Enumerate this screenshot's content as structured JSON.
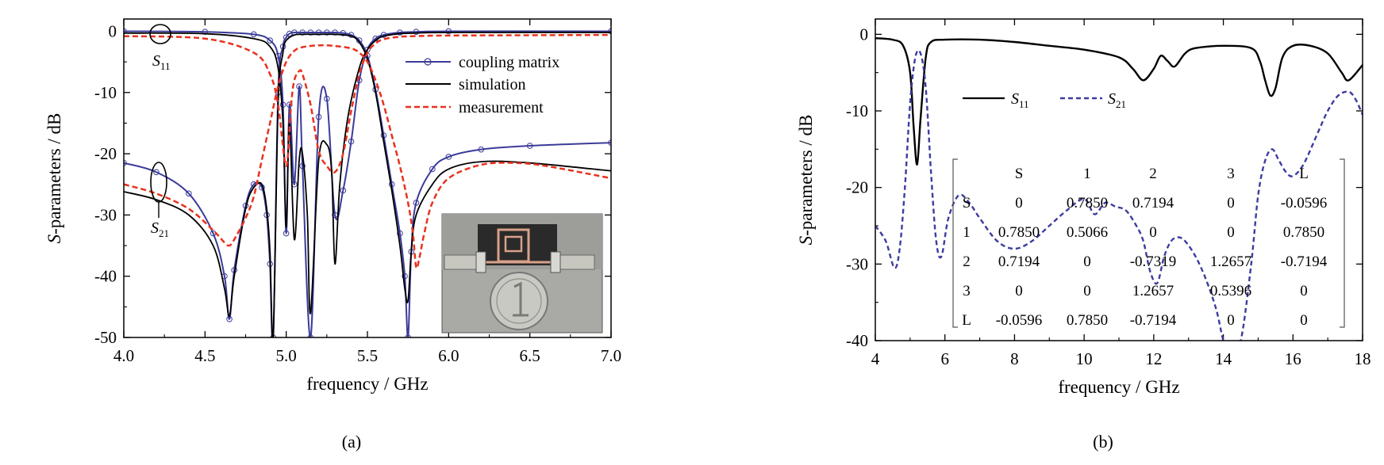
{
  "chart_data": [
    {
      "id": "a",
      "type": "line",
      "panel_label": "(a)",
      "xlabel": "frequency / GHz",
      "ylabel_italic": "S",
      "ylabel_rest": "-parameters / dB",
      "xlim": [
        4.0,
        7.0
      ],
      "ylim": [
        -50,
        2
      ],
      "xticks": [
        4.0,
        4.5,
        5.0,
        5.5,
        6.0,
        6.5,
        7.0
      ],
      "xtick_labels": [
        "4.0",
        "4.5",
        "5.0",
        "5.5",
        "6.0",
        "6.5",
        "7.0"
      ],
      "yticks": [
        0,
        -10,
        -20,
        -30,
        -40,
        -50
      ],
      "ytick_labels": [
        "0",
        "-10",
        "-20",
        "-30",
        "-40",
        "-50"
      ],
      "legend_position": "top-right",
      "legend": [
        "coupling matrix",
        "simulation",
        "measurement"
      ],
      "colors": {
        "coupling matrix": "#3b3b9a",
        "simulation": "#000000",
        "measurement": "#e8321e"
      },
      "annotations": [
        {
          "main": "S",
          "sub": "11",
          "x": 4.22,
          "y": -4.5
        },
        {
          "main": "S",
          "sub": "21",
          "x": 4.22,
          "y": -33.5
        }
      ],
      "inset": "photo of fabricated filter with coin",
      "series": [
        {
          "name": "coupling matrix",
          "role": "S11",
          "x": [
            4.0,
            4.5,
            4.8,
            4.9,
            4.95,
            4.98,
            5.0,
            5.02,
            5.05,
            5.08,
            5.1,
            5.15,
            5.2,
            5.25,
            5.3,
            5.35,
            5.4,
            5.45,
            5.5,
            5.55,
            5.6,
            5.7,
            5.8,
            6.0,
            7.0
          ],
          "y": [
            0.0,
            -0.1,
            -0.5,
            -1.5,
            -4.0,
            -12.0,
            -33.0,
            -12.0,
            -25.0,
            -9.0,
            -22.0,
            -50.0,
            -14.0,
            -11.0,
            -30.0,
            -26.0,
            -18.0,
            -8.0,
            -3.0,
            -1.2,
            -0.6,
            -0.2,
            -0.1,
            0.0,
            0.0
          ]
        },
        {
          "name": "coupling matrix",
          "role": "S21",
          "x": [
            4.0,
            4.2,
            4.4,
            4.55,
            4.62,
            4.65,
            4.68,
            4.75,
            4.8,
            4.85,
            4.88,
            4.9,
            4.92,
            4.95,
            4.98,
            5.0,
            5.02,
            5.05,
            5.1,
            5.15,
            5.2,
            5.25,
            5.3,
            5.35,
            5.4,
            5.45,
            5.5,
            5.55,
            5.6,
            5.65,
            5.7,
            5.73,
            5.75,
            5.77,
            5.8,
            5.9,
            6.0,
            6.2,
            6.5,
            7.0
          ],
          "y": [
            -21.5,
            -23.0,
            -26.5,
            -33.0,
            -40.0,
            -47.0,
            -39.0,
            -28.5,
            -25.0,
            -25.5,
            -30.0,
            -38.0,
            -50.0,
            -10.0,
            -2.5,
            -1.0,
            -0.4,
            -0.2,
            -0.2,
            -0.2,
            -0.2,
            -0.2,
            -0.2,
            -0.3,
            -0.6,
            -1.5,
            -4.0,
            -9.5,
            -17.0,
            -25.0,
            -33.0,
            -40.0,
            -50.0,
            -36.0,
            -28.0,
            -22.5,
            -20.5,
            -19.3,
            -18.7,
            -18.2
          ]
        },
        {
          "name": "simulation",
          "role": "S11",
          "x": [
            4.0,
            4.5,
            4.8,
            4.9,
            4.95,
            4.98,
            5.0,
            5.02,
            5.05,
            5.08,
            5.1,
            5.13,
            5.15,
            5.2,
            5.25,
            5.28,
            5.3,
            5.33,
            5.38,
            5.45,
            5.5,
            5.55,
            5.6,
            5.7,
            5.8,
            6.0,
            7.0
          ],
          "y": [
            -0.3,
            -0.4,
            -1.2,
            -2.5,
            -6.0,
            -15.0,
            -32.0,
            -15.0,
            -34.0,
            -21.0,
            -20.0,
            -30.0,
            -46.0,
            -21.0,
            -18.5,
            -23.0,
            -38.0,
            -25.0,
            -14.0,
            -6.0,
            -3.0,
            -1.5,
            -0.8,
            -0.4,
            -0.3,
            -0.2,
            -0.2
          ]
        },
        {
          "name": "simulation",
          "role": "S21",
          "x": [
            4.0,
            4.2,
            4.4,
            4.55,
            4.62,
            4.65,
            4.68,
            4.75,
            4.8,
            4.85,
            4.88,
            4.9,
            4.92,
            4.95,
            4.98,
            5.0,
            5.05,
            5.1,
            5.2,
            5.3,
            5.4,
            5.45,
            5.5,
            5.55,
            5.6,
            5.65,
            5.7,
            5.73,
            5.75,
            5.77,
            5.8,
            5.9,
            6.0,
            6.2,
            6.5,
            7.0
          ],
          "y": [
            -26.2,
            -27.5,
            -30.0,
            -35.0,
            -42.0,
            -46.5,
            -40.0,
            -29.0,
            -25.5,
            -25.0,
            -29.0,
            -36.0,
            -50.0,
            -12.0,
            -3.5,
            -1.5,
            -0.6,
            -0.5,
            -0.5,
            -0.5,
            -0.8,
            -1.8,
            -4.5,
            -10.0,
            -18.0,
            -26.0,
            -35.0,
            -42.0,
            -44.0,
            -36.0,
            -30.0,
            -25.0,
            -22.5,
            -21.3,
            -21.5,
            -22.8
          ]
        },
        {
          "name": "measurement",
          "role": "S11",
          "x": [
            4.0,
            4.5,
            4.8,
            4.9,
            4.95,
            5.0,
            5.03,
            5.05,
            5.08,
            5.1,
            5.15,
            5.2,
            5.25,
            5.3,
            5.35,
            5.4,
            5.45,
            5.5,
            5.55,
            5.6,
            5.7,
            5.8,
            6.0,
            7.0
          ],
          "y": [
            -0.8,
            -1.2,
            -3.5,
            -7.0,
            -12.0,
            -22.0,
            -12.0,
            -8.0,
            -6.5,
            -7.0,
            -12.0,
            -19.5,
            -22.0,
            -23.0,
            -20.0,
            -13.0,
            -7.0,
            -3.5,
            -2.0,
            -1.3,
            -0.9,
            -0.8,
            -0.7,
            -0.6
          ]
        },
        {
          "name": "measurement",
          "role": "S21",
          "x": [
            4.0,
            4.2,
            4.4,
            4.55,
            4.62,
            4.65,
            4.68,
            4.75,
            4.8,
            4.85,
            4.9,
            4.95,
            5.0,
            5.05,
            5.1,
            5.2,
            5.3,
            5.4,
            5.45,
            5.5,
            5.55,
            5.6,
            5.65,
            5.7,
            5.75,
            5.78,
            5.8,
            5.82,
            5.85,
            5.9,
            6.0,
            6.2,
            6.4,
            6.6,
            7.0
          ],
          "y": [
            -25.0,
            -26.5,
            -29.0,
            -32.5,
            -34.5,
            -35.0,
            -34.0,
            -30.5,
            -27.0,
            -21.0,
            -15.0,
            -9.0,
            -5.0,
            -3.2,
            -2.6,
            -2.3,
            -2.4,
            -2.8,
            -3.5,
            -5.0,
            -8.0,
            -12.0,
            -17.0,
            -22.0,
            -28.0,
            -33.0,
            -38.5,
            -37.0,
            -33.0,
            -28.0,
            -24.0,
            -21.8,
            -21.5,
            -22.0,
            -24.0
          ]
        }
      ]
    },
    {
      "id": "b",
      "type": "line",
      "panel_label": "(b)",
      "xlabel": "frequency / GHz",
      "ylabel_italic": "S",
      "ylabel_rest": "-parameters / dB",
      "xlim": [
        4,
        18
      ],
      "ylim": [
        -40,
        2
      ],
      "xticks": [
        4,
        6,
        8,
        10,
        12,
        14,
        16,
        18
      ],
      "xtick_labels": [
        "4",
        "6",
        "8",
        "10",
        "12",
        "14",
        "16",
        "18"
      ],
      "yticks": [
        0,
        -10,
        -20,
        -30,
        -40
      ],
      "ytick_labels": [
        "0",
        "-10",
        "-20",
        "-30",
        "-40"
      ],
      "legend_position": "upper-left",
      "legend": [
        {
          "main": "S",
          "sub": "11"
        },
        {
          "main": "S",
          "sub": "21"
        }
      ],
      "colors": {
        "S11": "#000000",
        "S21": "#3c3ca0"
      },
      "series": [
        {
          "name": "S11",
          "x": [
            4.0,
            4.5,
            4.8,
            5.0,
            5.1,
            5.2,
            5.3,
            5.45,
            5.6,
            6.0,
            7.0,
            8.0,
            9.0,
            10.0,
            11.0,
            11.4,
            11.7,
            12.0,
            12.2,
            12.4,
            12.6,
            12.9,
            13.2,
            14.0,
            14.8,
            15.05,
            15.2,
            15.35,
            15.5,
            15.7,
            16.0,
            16.5,
            17.0,
            17.4,
            17.6,
            18.0
          ],
          "y": [
            -0.5,
            -0.7,
            -1.5,
            -5.0,
            -12.0,
            -17.0,
            -11.0,
            -3.0,
            -1.0,
            -0.7,
            -0.7,
            -1.0,
            -1.5,
            -2.0,
            -3.0,
            -4.5,
            -6.0,
            -4.5,
            -2.8,
            -3.5,
            -4.2,
            -2.5,
            -1.8,
            -1.5,
            -1.8,
            -3.5,
            -6.0,
            -8.0,
            -7.0,
            -3.0,
            -1.5,
            -1.5,
            -2.5,
            -5.0,
            -6.0,
            -4.0
          ]
        },
        {
          "name": "S21",
          "x": [
            4.0,
            4.3,
            4.55,
            4.7,
            4.85,
            5.0,
            5.15,
            5.3,
            5.45,
            5.6,
            5.75,
            5.9,
            6.1,
            6.4,
            6.7,
            7.0,
            7.5,
            8.0,
            8.5,
            9.0,
            9.5,
            10.0,
            10.3,
            10.6,
            10.9,
            11.2,
            11.5,
            11.7,
            11.9,
            12.1,
            12.3,
            12.5,
            12.7,
            12.9,
            13.2,
            13.5,
            13.8,
            14.0,
            14.2,
            14.5,
            14.8,
            15.0,
            15.2,
            15.4,
            15.6,
            15.8,
            16.0,
            16.3,
            16.7,
            17.0,
            17.3,
            17.6,
            17.8,
            18.0
          ],
          "y": [
            -25.0,
            -27.0,
            -30.5,
            -28.0,
            -20.0,
            -9.0,
            -3.0,
            -2.5,
            -7.0,
            -18.0,
            -27.0,
            -29.0,
            -24.0,
            -21.0,
            -22.0,
            -24.0,
            -27.0,
            -28.0,
            -27.0,
            -25.0,
            -23.0,
            -21.5,
            -23.5,
            -22.0,
            -22.5,
            -23.0,
            -25.0,
            -27.0,
            -31.0,
            -32.5,
            -29.0,
            -27.0,
            -26.5,
            -27.0,
            -29.0,
            -32.0,
            -36.0,
            -40.0,
            -42.0,
            -40.0,
            -30.0,
            -21.0,
            -16.5,
            -15.0,
            -16.5,
            -18.0,
            -18.5,
            -17.0,
            -13.0,
            -10.0,
            -8.0,
            -7.5,
            -8.5,
            -10.5
          ]
        }
      ],
      "table": {
        "columns": [
          "",
          "S",
          "1",
          "2",
          "3",
          "L"
        ],
        "rows": [
          [
            "S",
            "0",
            "0.7850",
            "0.7194",
            "0",
            "-0.0596"
          ],
          [
            "1",
            "0.7850",
            "0.5066",
            "0",
            "0",
            "0.7850"
          ],
          [
            "2",
            "0.7194",
            "0",
            "-0.7319",
            "1.2657",
            "-0.7194"
          ],
          [
            "3",
            "0",
            "0",
            "1.2657",
            "0.5396",
            "0"
          ],
          [
            "L",
            "-0.0596",
            "0.7850",
            "-0.7194",
            "0",
            "0"
          ]
        ]
      }
    }
  ]
}
